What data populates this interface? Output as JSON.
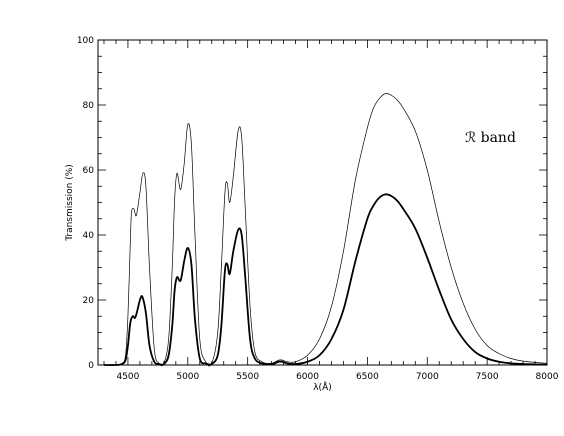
{
  "chart_data": {
    "type": "line",
    "title": "",
    "xlabel": "λ(Å)",
    "ylabel": "Transmission (%)",
    "xlim": [
      4250,
      8000
    ],
    "ylim": [
      0,
      100
    ],
    "xticks": [
      4500,
      5000,
      5500,
      6000,
      6500,
      7000,
      7500,
      8000
    ],
    "xtick_labels": [
      "4500",
      "5000",
      "5500",
      "6000",
      "6500",
      "7000",
      "7500",
      "8000"
    ],
    "yticks": [
      0,
      20,
      40,
      60,
      80,
      100
    ],
    "ytick_labels": [
      "0",
      "20",
      "40",
      "60",
      "80",
      "100"
    ],
    "grid": false,
    "annotation": "ℛ band",
    "series": [
      {
        "style": "thin",
        "color": "#000000",
        "x": [
          4300,
          4400,
          4450,
          4480,
          4500,
          4520,
          4530,
          4550,
          4570,
          4600,
          4625,
          4650,
          4680,
          4720,
          4760,
          4800,
          4840,
          4870,
          4890,
          4910,
          4940,
          4970,
          5000,
          5030,
          5060,
          5100,
          5150,
          5200,
          5250,
          5280,
          5310,
          5330,
          5350,
          5380,
          5420,
          5450,
          5480,
          5520,
          5560,
          5620,
          5700,
          5760,
          5790,
          5830,
          5900,
          6000,
          6100,
          6200,
          6300,
          6400,
          6500,
          6550,
          6600,
          6650,
          6700,
          6750,
          6800,
          6900,
          7000,
          7100,
          7200,
          7300,
          7400,
          7500,
          7600,
          7700,
          7800,
          7900,
          8000
        ],
        "y": [
          0,
          0,
          0.5,
          3,
          15,
          38,
          47,
          48,
          46,
          53,
          59,
          55,
          30,
          5,
          0.5,
          0.5,
          8,
          30,
          51,
          59,
          54,
          62,
          74,
          68,
          40,
          8,
          1,
          0.5,
          10,
          30,
          53,
          56,
          50,
          58,
          72,
          70,
          48,
          18,
          4,
          1,
          0.5,
          1.5,
          1.5,
          1,
          1,
          3,
          8,
          18,
          35,
          57,
          73,
          79,
          82,
          83.5,
          83,
          81.5,
          79,
          72,
          60,
          44,
          30,
          19,
          11,
          6,
          3.5,
          2,
          1.2,
          0.8,
          0.5
        ]
      },
      {
        "style": "thick",
        "color": "#000000",
        "x": [
          4300,
          4400,
          4450,
          4480,
          4500,
          4520,
          4540,
          4560,
          4580,
          4600,
          4620,
          4650,
          4680,
          4720,
          4760,
          4800,
          4840,
          4870,
          4890,
          4910,
          4940,
          4970,
          5000,
          5030,
          5060,
          5100,
          5150,
          5200,
          5250,
          5280,
          5310,
          5330,
          5350,
          5380,
          5420,
          5450,
          5480,
          5520,
          5560,
          5620,
          5700,
          5760,
          5790,
          5830,
          5900,
          6000,
          6100,
          6200,
          6300,
          6400,
          6500,
          6550,
          6600,
          6650,
          6700,
          6750,
          6800,
          6900,
          7000,
          7100,
          7200,
          7300,
          7400,
          7500,
          7600,
          7700,
          7800,
          7900,
          8000
        ],
        "y": [
          0,
          0,
          0.3,
          1.5,
          6,
          13,
          15,
          14.5,
          17,
          20,
          21,
          16,
          6,
          1,
          0.3,
          0.3,
          3,
          12,
          23,
          27,
          26,
          32,
          36,
          31,
          14,
          2,
          0.5,
          0.3,
          3,
          12,
          29,
          31,
          28,
          35,
          41.5,
          40,
          27,
          8,
          2,
          0.5,
          0.3,
          1,
          1,
          0.5,
          0.3,
          1,
          3,
          8,
          17,
          32,
          45,
          49,
          51.5,
          52.5,
          52,
          50.5,
          48,
          42,
          33,
          23,
          14,
          8,
          4,
          2,
          1,
          0.5,
          0.3,
          0.2,
          0.1
        ]
      }
    ]
  }
}
